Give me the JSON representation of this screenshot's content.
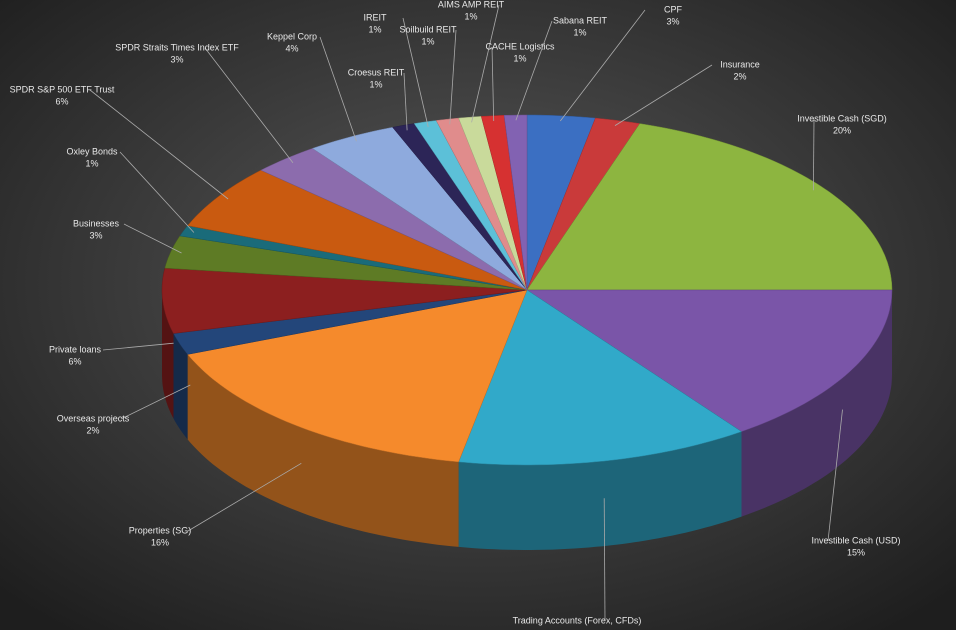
{
  "chart_data": {
    "type": "pie",
    "categories": [
      "CPF",
      "Insurance",
      "Investible Cash (SGD)",
      "Investible Cash (USD)",
      "Trading Accounts (Forex, CFDs)",
      "Properties (SG)",
      "Overseas projects",
      "Private loans",
      "Businesses",
      "Oxley Bonds",
      "SPDR S&P 500 ETF Trust",
      "SPDR Straits Times Index ETF",
      "Keppel Corp",
      "Croesus REIT",
      "IREIT",
      "Soilbuild REIT",
      "AIMS AMP REIT",
      "CACHE Logistics",
      "Sabana REIT"
    ],
    "values": [
      3,
      2,
      20,
      15,
      13,
      16,
      2,
      6,
      3,
      1,
      6,
      3,
      4,
      1,
      1,
      1,
      1,
      1,
      1
    ],
    "value_labels": [
      "3%",
      "2%",
      "20%",
      "15%",
      null,
      "16%",
      "2%",
      "6%",
      "3%",
      "1%",
      "6%",
      "3%",
      "4%",
      "1%",
      "1%",
      "1%",
      "1%",
      "1%",
      "1%"
    ],
    "colors": [
      "#3b6fc2",
      "#c93a3a",
      "#8db540",
      "#7a55a8",
      "#31a9c9",
      "#f58a2c",
      "#23467a",
      "#8c1f1f",
      "#5e7b25",
      "#1a6b7a",
      "#c95a10",
      "#8c6cad",
      "#8eaadd",
      "#2c2557",
      "#5cc0d8",
      "#e08c8c",
      "#c9da9b",
      "#d63131",
      "#8262b2"
    ]
  }
}
